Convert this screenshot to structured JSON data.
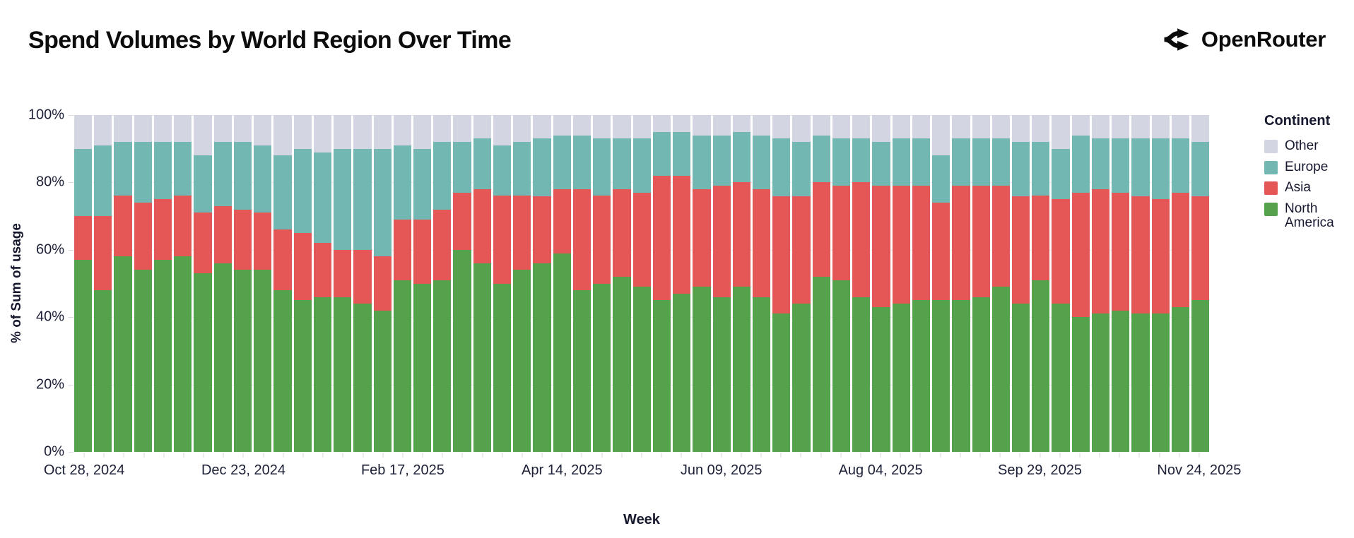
{
  "header": {
    "title": "Spend Volumes by World Region Over Time",
    "brand": "OpenRouter"
  },
  "chart_data": {
    "type": "bar",
    "variant": "stacked-percent",
    "title": "Spend Volumes by World Region Over Time",
    "xlabel": "Week",
    "ylabel": "% of Sum of usage",
    "ylim": [
      0,
      100
    ],
    "grid": true,
    "legend_position": "right",
    "legend": {
      "title": "Continent",
      "items": [
        "Other",
        "Europe",
        "Asia",
        "North America"
      ]
    },
    "y_ticks": [
      "0%",
      "20%",
      "40%",
      "60%",
      "80%",
      "100%"
    ],
    "x_tick_labels": [
      "Oct 28, 2024",
      "Dec 23, 2024",
      "Feb 17, 2025",
      "Apr 14, 2025",
      "Jun 09, 2025",
      "Aug 04, 2025",
      "Sep 29, 2025",
      "Nov 24, 2025"
    ],
    "x_tick_every": 8,
    "weeks": 57,
    "x_unit": "week (bars are consecutive weeks between labeled ticks)",
    "series": [
      {
        "name": "North America",
        "color": "#54A24B",
        "values": [
          57,
          48,
          58,
          54,
          57,
          58,
          53,
          56,
          54,
          54,
          48,
          45,
          46,
          46,
          44,
          42,
          51,
          50,
          51,
          60,
          56,
          50,
          54,
          56,
          59,
          48,
          50,
          52,
          49,
          45,
          47,
          49,
          46,
          49,
          46,
          41,
          44,
          52,
          51,
          46,
          43,
          44,
          45,
          45,
          45,
          46,
          49,
          44,
          51,
          44,
          40,
          41,
          42,
          41,
          41,
          43,
          45
        ]
      },
      {
        "name": "Asia",
        "color": "#E45756",
        "values": [
          13,
          22,
          18,
          20,
          18,
          18,
          18,
          17,
          18,
          17,
          18,
          20,
          16,
          14,
          16,
          16,
          18,
          19,
          21,
          17,
          22,
          26,
          22,
          20,
          19,
          30,
          26,
          26,
          28,
          37,
          35,
          29,
          33,
          31,
          32,
          35,
          32,
          28,
          28,
          34,
          36,
          35,
          34,
          29,
          34,
          33,
          30,
          32,
          25,
          31,
          37,
          37,
          35,
          35,
          34,
          34,
          31
        ]
      },
      {
        "name": "Europe",
        "color": "#72B7B2",
        "values": [
          20,
          21,
          16,
          18,
          17,
          16,
          17,
          19,
          20,
          20,
          22,
          25,
          27,
          30,
          30,
          32,
          22,
          21,
          20,
          15,
          15,
          15,
          16,
          17,
          16,
          16,
          17,
          15,
          16,
          13,
          13,
          16,
          15,
          15,
          16,
          17,
          16,
          14,
          14,
          13,
          13,
          14,
          14,
          14,
          14,
          14,
          14,
          16,
          16,
          15,
          17,
          15,
          16,
          17,
          18,
          16,
          16
        ]
      },
      {
        "name": "Other",
        "color": "#D3D5E2",
        "values": [
          10,
          9,
          8,
          8,
          8,
          8,
          12,
          8,
          8,
          9,
          12,
          10,
          11,
          10,
          10,
          10,
          9,
          10,
          8,
          8,
          7,
          9,
          8,
          7,
          6,
          6,
          7,
          7,
          7,
          5,
          5,
          6,
          6,
          5,
          6,
          7,
          8,
          6,
          7,
          7,
          8,
          7,
          7,
          12,
          7,
          7,
          7,
          8,
          8,
          10,
          6,
          7,
          7,
          7,
          7,
          7,
          8
        ]
      }
    ]
  }
}
